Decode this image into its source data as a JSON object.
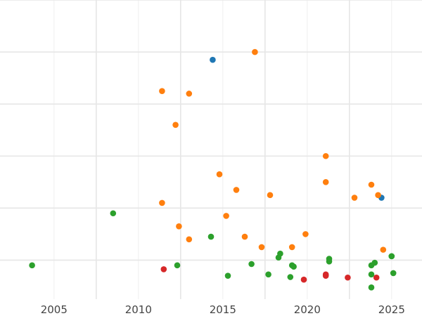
{
  "chart_data": {
    "type": "scatter",
    "title": "",
    "xlabel": "",
    "ylabel": "",
    "xlim": [
      2001.8,
      2026.8
    ],
    "ylim": [
      -0.05,
      1.1
    ],
    "x_ticks": [
      2005,
      2010,
      2015,
      2020,
      2025
    ],
    "x_tick_labels": [
      "2005",
      "2010",
      "2015",
      "2020",
      "2025"
    ],
    "y_gridlines": [
      0.1,
      0.3,
      0.5,
      0.7,
      0.9,
      1.1
    ],
    "y_tick_labels_visible": false,
    "grid": true,
    "legend": "none",
    "series": [
      {
        "color": "#1f77b4",
        "points": [
          {
            "x": 2014.4,
            "y": 0.87
          },
          {
            "x": 2024.4,
            "y": 0.34
          }
        ]
      },
      {
        "color": "#ff7f0e",
        "points": [
          {
            "x": 2016.9,
            "y": 0.9
          },
          {
            "x": 2011.4,
            "y": 0.75
          },
          {
            "x": 2013.0,
            "y": 0.74
          },
          {
            "x": 2012.2,
            "y": 0.62
          },
          {
            "x": 2021.1,
            "y": 0.5
          },
          {
            "x": 2014.8,
            "y": 0.43
          },
          {
            "x": 2021.1,
            "y": 0.4
          },
          {
            "x": 2023.8,
            "y": 0.39
          },
          {
            "x": 2015.8,
            "y": 0.37
          },
          {
            "x": 2017.8,
            "y": 0.35
          },
          {
            "x": 2024.2,
            "y": 0.35
          },
          {
            "x": 2022.8,
            "y": 0.34
          },
          {
            "x": 2011.4,
            "y": 0.32
          },
          {
            "x": 2015.2,
            "y": 0.27
          },
          {
            "x": 2012.4,
            "y": 0.23
          },
          {
            "x": 2019.9,
            "y": 0.2
          },
          {
            "x": 2013.0,
            "y": 0.18
          },
          {
            "x": 2016.3,
            "y": 0.19
          },
          {
            "x": 2019.1,
            "y": 0.15
          },
          {
            "x": 2017.3,
            "y": 0.15
          },
          {
            "x": 2024.5,
            "y": 0.14
          }
        ]
      },
      {
        "color": "#2ca02c",
        "points": [
          {
            "x": 2003.7,
            "y": 0.08
          },
          {
            "x": 2008.5,
            "y": 0.28
          },
          {
            "x": 2014.3,
            "y": 0.19
          },
          {
            "x": 2012.3,
            "y": 0.08
          },
          {
            "x": 2015.3,
            "y": 0.04
          },
          {
            "x": 2016.7,
            "y": 0.085
          },
          {
            "x": 2017.7,
            "y": 0.045
          },
          {
            "x": 2018.3,
            "y": 0.11
          },
          {
            "x": 2018.4,
            "y": 0.125
          },
          {
            "x": 2019.0,
            "y": 0.035
          },
          {
            "x": 2019.1,
            "y": 0.08
          },
          {
            "x": 2019.2,
            "y": 0.075
          },
          {
            "x": 2021.3,
            "y": 0.105
          },
          {
            "x": 2021.3,
            "y": 0.095
          },
          {
            "x": 2023.8,
            "y": 0.08
          },
          {
            "x": 2024.0,
            "y": 0.09
          },
          {
            "x": 2023.8,
            "y": 0.045
          },
          {
            "x": 2025.0,
            "y": 0.115
          },
          {
            "x": 2025.0,
            "y": 0.115
          },
          {
            "x": 2025.0,
            "y": 0.115
          },
          {
            "x": 2025.1,
            "y": 0.05
          },
          {
            "x": 2023.8,
            "y": -0.005
          }
        ]
      },
      {
        "color": "#d62728",
        "points": [
          {
            "x": 2011.5,
            "y": 0.065
          },
          {
            "x": 2019.8,
            "y": 0.025
          },
          {
            "x": 2021.1,
            "y": 0.045
          },
          {
            "x": 2021.1,
            "y": 0.04
          },
          {
            "x": 2022.4,
            "y": 0.033
          },
          {
            "x": 2024.1,
            "y": 0.033
          }
        ]
      }
    ]
  }
}
